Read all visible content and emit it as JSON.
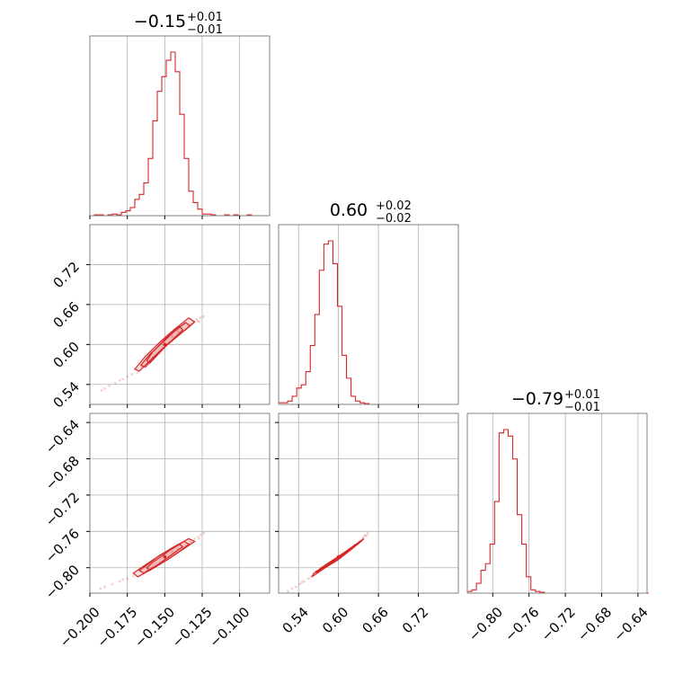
{
  "chart_data": {
    "type": "corner",
    "color": "#d62728",
    "parameters": [
      {
        "title": {
          "median": "−0.15",
          "plus": "+0.01",
          "minus": "−0.01"
        },
        "range": [
          -0.2,
          -0.08
        ],
        "ticks": [
          -0.2,
          -0.175,
          -0.15,
          -0.125,
          -0.1
        ],
        "tick_labels": [
          "−0.200",
          "−0.175",
          "−0.150",
          "−0.125",
          "−0.100"
        ],
        "hist_edges": [
          -0.2,
          -0.197,
          -0.194,
          -0.191,
          -0.188,
          -0.185,
          -0.182,
          -0.179,
          -0.176,
          -0.173,
          -0.17,
          -0.167,
          -0.164,
          -0.161,
          -0.158,
          -0.155,
          -0.152,
          -0.149,
          -0.146,
          -0.143,
          -0.14,
          -0.137,
          -0.134,
          -0.131,
          -0.128,
          -0.125,
          -0.122,
          -0.119,
          -0.116,
          -0.113,
          -0.11,
          -0.107,
          -0.104,
          -0.101,
          -0.098,
          -0.095,
          -0.092,
          -0.089,
          -0.086,
          -0.083,
          -0.08
        ],
        "hist_counts": [
          0,
          0.005,
          0.005,
          0,
          0.005,
          0.01,
          0.005,
          0.02,
          0.03,
          0.05,
          0.1,
          0.13,
          0.2,
          0.35,
          0.58,
          0.76,
          0.85,
          0.95,
          1.0,
          0.88,
          0.62,
          0.35,
          0.15,
          0.08,
          0.04,
          0.01,
          0.01,
          0.005,
          0,
          0,
          0.005,
          0,
          0.005,
          0,
          0,
          0.005,
          0,
          0,
          0,
          0
        ]
      },
      {
        "title": {
          "median": "0.60",
          "plus": "+0.02",
          "minus": "−0.02"
        },
        "range": [
          0.51,
          0.78
        ],
        "ticks": [
          0.54,
          0.6,
          0.66,
          0.72
        ],
        "tick_labels": [
          "0.54",
          "0.60",
          "0.66",
          "0.72"
        ],
        "hist_edges": [
          0.51,
          0.5168,
          0.5236,
          0.5304,
          0.5372,
          0.544,
          0.5508,
          0.5576,
          0.5644,
          0.5712,
          0.578,
          0.5848,
          0.5916,
          0.5984,
          0.6052,
          0.612,
          0.6188,
          0.6256,
          0.6324,
          0.6392,
          0.646,
          0.6528,
          0.6596,
          0.6664,
          0.6732,
          0.68,
          0.6868,
          0.6936,
          0.7004,
          0.7072,
          0.714,
          0.7208,
          0.7276,
          0.7344,
          0.7412,
          0.748,
          0.7548,
          0.7616,
          0.7684,
          0.7752,
          0.78
        ],
        "hist_counts": [
          0.01,
          0.01,
          0.02,
          0.05,
          0.1,
          0.12,
          0.2,
          0.36,
          0.55,
          0.82,
          0.98,
          1.0,
          0.86,
          0.6,
          0.3,
          0.16,
          0.05,
          0.02,
          0.01,
          0.005,
          0,
          0,
          0,
          0,
          0,
          0,
          0,
          0,
          0,
          0,
          0,
          0,
          0,
          0,
          0,
          0,
          0,
          0,
          0,
          0
        ]
      },
      {
        "title": {
          "median": "−0.79",
          "plus": "+0.01",
          "minus": "−0.01"
        },
        "range": [
          -0.828,
          -0.63
        ],
        "ticks": [
          -0.8,
          -0.76,
          -0.72,
          -0.68,
          -0.64
        ],
        "tick_labels": [
          "−0.80",
          "−0.76",
          "−0.72",
          "−0.68",
          "−0.64"
        ],
        "hist_edges": [
          -0.828,
          -0.823,
          -0.818,
          -0.813,
          -0.808,
          -0.803,
          -0.798,
          -0.793,
          -0.788,
          -0.783,
          -0.778,
          -0.773,
          -0.768,
          -0.763,
          -0.758,
          -0.753,
          -0.748,
          -0.743,
          -0.738,
          -0.733,
          -0.728,
          -0.723,
          -0.718,
          -0.713,
          -0.708,
          -0.703,
          -0.698,
          -0.693,
          -0.688,
          -0.683,
          -0.678,
          -0.673,
          -0.668,
          -0.663,
          -0.658,
          -0.653,
          -0.648,
          -0.643,
          -0.638,
          -0.633,
          -0.628
        ],
        "hist_counts": [
          0.01,
          0.02,
          0.06,
          0.14,
          0.18,
          0.3,
          0.56,
          0.98,
          1.0,
          0.96,
          0.82,
          0.48,
          0.3,
          0.1,
          0.02,
          0.01,
          0.005,
          0,
          0,
          0,
          0,
          0,
          0,
          0,
          0,
          0,
          0,
          0,
          0,
          0,
          0,
          0,
          0,
          0,
          0,
          0,
          0,
          0,
          0,
          0
        ]
      }
    ],
    "pairs": [
      {
        "x_param": 0,
        "y_param": 1,
        "y_ticks": [
          0.54,
          0.6,
          0.66,
          0.72
        ],
        "y_tick_labels": [
          "0.54",
          "0.60",
          "0.66",
          "0.72"
        ],
        "center": [
          -0.15,
          0.6
        ],
        "contours": [
          {
            "x": [
              -0.16,
              -0.155,
              -0.149,
              -0.143,
              -0.138,
              -0.14,
              -0.146,
              -0.152,
              -0.158,
              -0.162
            ],
            "y": [
              0.572,
              0.584,
              0.598,
              0.611,
              0.622,
              0.627,
              0.617,
              0.603,
              0.589,
              0.576
            ]
          },
          {
            "x": [
              -0.163,
              -0.156,
              -0.148,
              -0.14,
              -0.133,
              -0.136,
              -0.144,
              -0.152,
              -0.16,
              -0.166
            ],
            "y": [
              0.566,
              0.583,
              0.6,
              0.615,
              0.628,
              0.633,
              0.619,
              0.602,
              0.585,
              0.569
            ]
          },
          {
            "x": [
              -0.167,
              -0.158,
              -0.148,
              -0.138,
              -0.13,
              -0.134,
              -0.144,
              -0.154,
              -0.163,
              -0.17
            ],
            "y": [
              0.56,
              0.58,
              0.601,
              0.619,
              0.634,
              0.64,
              0.622,
              0.602,
              0.582,
              0.563
            ]
          }
        ],
        "scatter": [
          [
            -0.172,
            0.555
          ],
          [
            -0.178,
            0.548
          ],
          [
            -0.183,
            0.542
          ],
          [
            -0.187,
            0.538
          ],
          [
            -0.19,
            0.534
          ],
          [
            -0.192,
            0.531
          ],
          [
            -0.168,
            0.558
          ],
          [
            -0.175,
            0.552
          ],
          [
            -0.18,
            0.546
          ],
          [
            -0.132,
            0.63
          ],
          [
            -0.128,
            0.636
          ],
          [
            -0.126,
            0.64
          ],
          [
            -0.129,
            0.638
          ],
          [
            -0.134,
            0.628
          ],
          [
            -0.137,
            0.631
          ],
          [
            -0.127,
            0.634
          ],
          [
            -0.124,
            0.642
          ],
          [
            -0.131,
            0.633
          ],
          [
            -0.165,
            0.566
          ],
          [
            -0.16,
            0.573
          ],
          [
            -0.141,
            0.62
          ],
          [
            -0.145,
            0.612
          ]
        ]
      },
      {
        "x_param": 0,
        "y_param": 2,
        "y_ticks": [
          -0.8,
          -0.76,
          -0.72,
          -0.68,
          -0.64
        ],
        "y_tick_labels": [
          "−0.80",
          "−0.76",
          "−0.72",
          "−0.68",
          "−0.64"
        ],
        "center": [
          -0.15,
          -0.788
        ],
        "contours": [
          {
            "x": [
              -0.16,
              -0.155,
              -0.149,
              -0.143,
              -0.138,
              -0.14,
              -0.146,
              -0.152,
              -0.158,
              -0.162
            ],
            "y": [
              -0.803,
              -0.797,
              -0.79,
              -0.783,
              -0.777,
              -0.774,
              -0.78,
              -0.787,
              -0.794,
              -0.8
            ]
          },
          {
            "x": [
              -0.164,
              -0.157,
              -0.148,
              -0.14,
              -0.134,
              -0.137,
              -0.145,
              -0.154,
              -0.161,
              -0.167
            ],
            "y": [
              -0.806,
              -0.799,
              -0.791,
              -0.782,
              -0.774,
              -0.771,
              -0.779,
              -0.787,
              -0.796,
              -0.803
            ]
          },
          {
            "x": [
              -0.168,
              -0.158,
              -0.148,
              -0.138,
              -0.13,
              -0.134,
              -0.144,
              -0.154,
              -0.163,
              -0.171
            ],
            "y": [
              -0.81,
              -0.801,
              -0.791,
              -0.78,
              -0.771,
              -0.768,
              -0.777,
              -0.787,
              -0.797,
              -0.806
            ]
          }
        ],
        "scatter": [
          [
            -0.175,
            -0.812
          ],
          [
            -0.18,
            -0.815
          ],
          [
            -0.185,
            -0.818
          ],
          [
            -0.19,
            -0.821
          ],
          [
            -0.193,
            -0.823
          ],
          [
            -0.171,
            -0.809
          ],
          [
            -0.178,
            -0.813
          ],
          [
            -0.13,
            -0.768
          ],
          [
            -0.126,
            -0.764
          ],
          [
            -0.124,
            -0.762
          ],
          [
            -0.128,
            -0.766
          ],
          [
            -0.133,
            -0.772
          ],
          [
            -0.127,
            -0.768
          ],
          [
            -0.135,
            -0.769
          ],
          [
            -0.162,
            -0.804
          ],
          [
            -0.158,
            -0.8
          ],
          [
            -0.141,
            -0.779
          ],
          [
            -0.145,
            -0.783
          ]
        ]
      },
      {
        "x_param": 1,
        "y_param": 2,
        "y_ticks": [
          -0.8,
          -0.76,
          -0.72,
          -0.68,
          -0.64
        ],
        "y_tick_labels": [
          "−0.80",
          "−0.76",
          "−0.72",
          "−0.68",
          "−0.64"
        ],
        "center": [
          0.6,
          -0.788
        ],
        "contours": [
          {
            "x": [
              0.572,
              0.584,
              0.598,
              0.611,
              0.622,
              0.626,
              0.615,
              0.602,
              0.588,
              0.576
            ],
            "y": [
              -0.803,
              -0.797,
              -0.79,
              -0.783,
              -0.777,
              -0.774,
              -0.78,
              -0.787,
              -0.794,
              -0.8
            ]
          },
          {
            "x": [
              0.566,
              0.581,
              0.599,
              0.615,
              0.628,
              0.632,
              0.618,
              0.601,
              0.584,
              0.57
            ],
            "y": [
              -0.806,
              -0.799,
              -0.791,
              -0.782,
              -0.774,
              -0.771,
              -0.779,
              -0.787,
              -0.796,
              -0.803
            ]
          },
          {
            "x": [
              0.56,
              0.578,
              0.6,
              0.619,
              0.634,
              0.638,
              0.621,
              0.601,
              0.58,
              0.563
            ],
            "y": [
              -0.81,
              -0.801,
              -0.791,
              -0.78,
              -0.771,
              -0.768,
              -0.777,
              -0.787,
              -0.797,
              -0.806
            ]
          }
        ],
        "scatter": [
          [
            0.555,
            -0.812
          ],
          [
            0.548,
            -0.815
          ],
          [
            0.542,
            -0.818
          ],
          [
            0.536,
            -0.821
          ],
          [
            0.53,
            -0.823
          ],
          [
            0.524,
            -0.826
          ],
          [
            0.559,
            -0.81
          ],
          [
            0.545,
            -0.816
          ],
          [
            0.636,
            -0.768
          ],
          [
            0.64,
            -0.764
          ],
          [
            0.644,
            -0.762
          ],
          [
            0.638,
            -0.766
          ],
          [
            0.632,
            -0.771
          ],
          [
            0.642,
            -0.765
          ],
          [
            0.629,
            -0.774
          ],
          [
            0.566,
            -0.804
          ],
          [
            0.574,
            -0.8
          ],
          [
            0.617,
            -0.779
          ],
          [
            0.611,
            -0.783
          ]
        ]
      }
    ]
  }
}
